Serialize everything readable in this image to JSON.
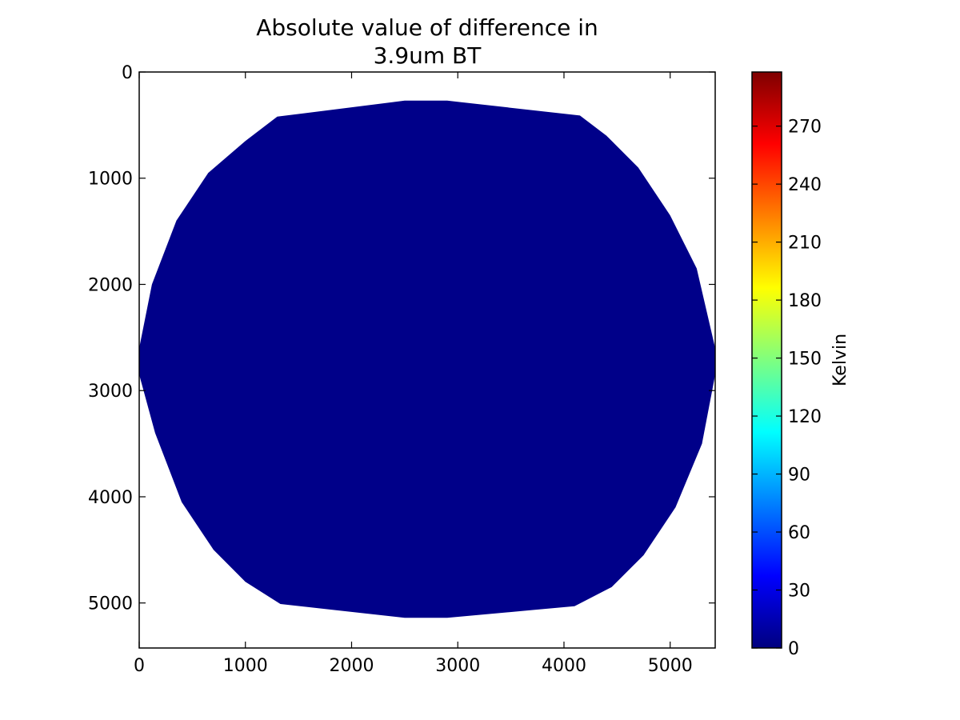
{
  "chart_data": {
    "type": "heatmap",
    "title_lines": [
      "Absolute value of difference in",
      "3.9um BT"
    ],
    "x_ticks": [
      0,
      1000,
      2000,
      3000,
      4000,
      5000
    ],
    "x_tick_labels": [
      "0",
      "1000",
      "2000",
      "3000",
      "4000",
      "5000"
    ],
    "y_ticks": [
      0,
      1000,
      2000,
      3000,
      4000,
      5000
    ],
    "y_tick_labels": [
      "0",
      "1000",
      "2000",
      "3000",
      "4000",
      "5000"
    ],
    "xlim": [
      0,
      5424
    ],
    "ylim": [
      5424,
      0
    ],
    "y_inverted": true,
    "grid": false,
    "field": {
      "description_shape": "full-disk",
      "outline": [
        [
          1300,
          420
        ],
        [
          2500,
          270
        ],
        [
          2900,
          270
        ],
        [
          4150,
          410
        ],
        [
          4400,
          600
        ],
        [
          4700,
          900
        ],
        [
          5000,
          1350
        ],
        [
          5250,
          1850
        ],
        [
          5424,
          2600
        ],
        [
          5424,
          2850
        ],
        [
          5300,
          3500
        ],
        [
          5050,
          4100
        ],
        [
          4750,
          4550
        ],
        [
          4450,
          4850
        ],
        [
          4100,
          5030
        ],
        [
          2900,
          5140
        ],
        [
          2500,
          5140
        ],
        [
          1330,
          5010
        ],
        [
          1000,
          4800
        ],
        [
          700,
          4500
        ],
        [
          400,
          4050
        ],
        [
          150,
          3400
        ],
        [
          0,
          2850
        ],
        [
          0,
          2600
        ],
        [
          120,
          2000
        ],
        [
          350,
          1400
        ],
        [
          650,
          950
        ],
        [
          1000,
          650
        ],
        [
          1300,
          420
        ]
      ],
      "value": 3
    },
    "colormap": "jet",
    "colormap_stops": [
      "#00007f",
      "#0000ff",
      "#007fff",
      "#00ffff",
      "#7fff7f",
      "#ffff00",
      "#ff7f00",
      "#ff0000",
      "#7f0000"
    ],
    "colorbar": {
      "label": "Kelvin",
      "vmin": 0,
      "vmax": 298,
      "ticks": [
        0,
        30,
        60,
        90,
        120,
        150,
        180,
        210,
        240,
        270
      ],
      "tick_labels": [
        "0",
        "30",
        "60",
        "90",
        "120",
        "150",
        "180",
        "210",
        "240",
        "270"
      ]
    }
  }
}
